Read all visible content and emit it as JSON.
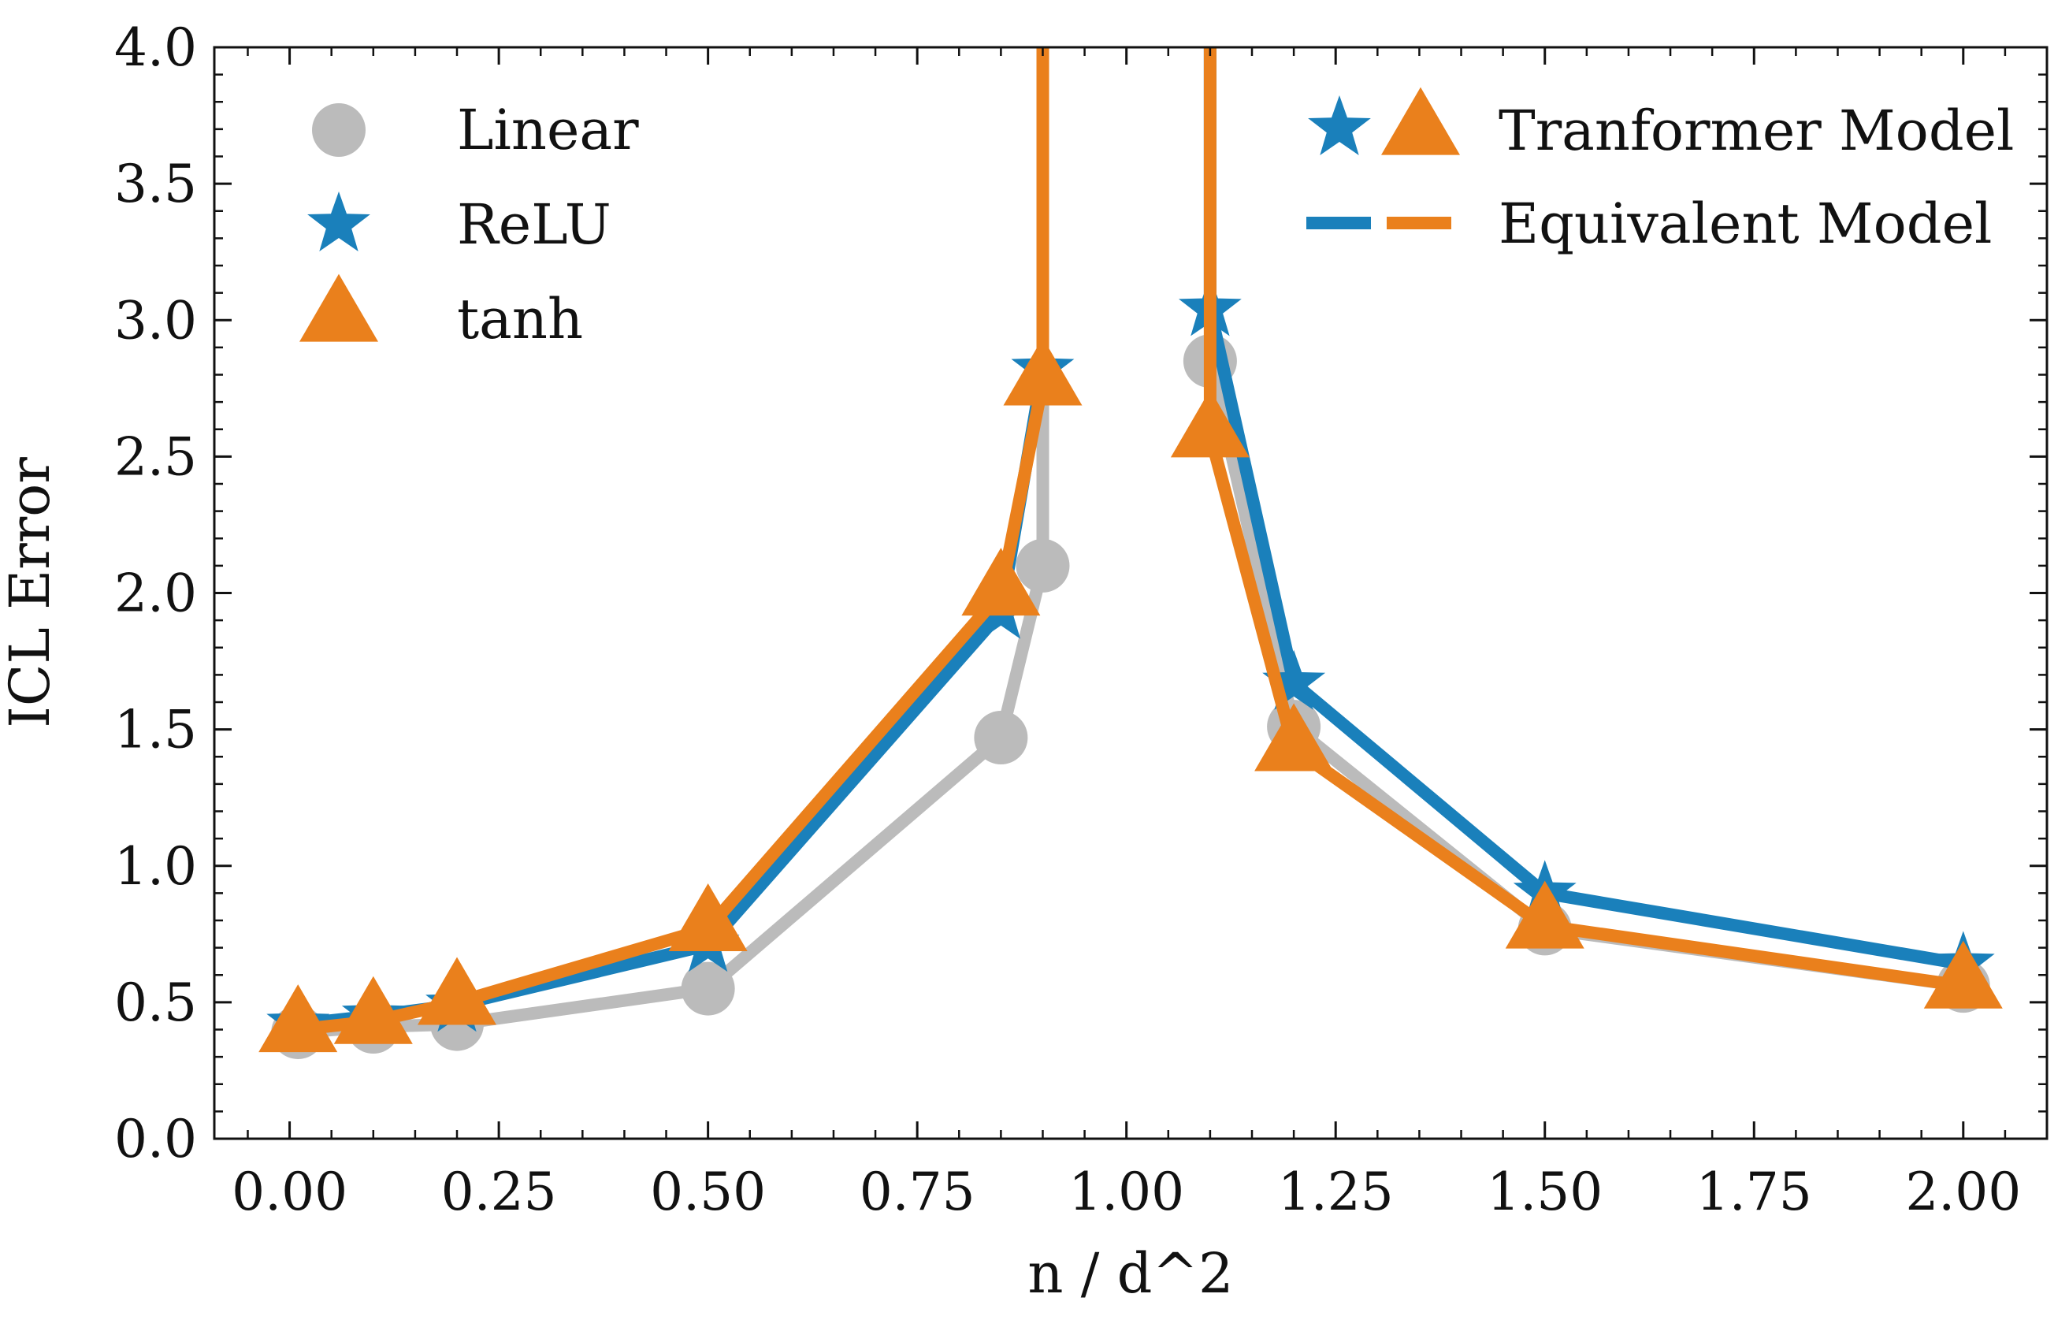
{
  "chart_data": {
    "type": "line",
    "title": "",
    "xlabel": "n / d^2",
    "ylabel": "ICL Error",
    "xlim": [
      -0.09,
      2.1
    ],
    "ylim": [
      0.0,
      4.0
    ],
    "x_ticks": [
      0.0,
      0.25,
      0.5,
      0.75,
      1.0,
      1.25,
      1.5,
      1.75,
      2.0
    ],
    "x_tick_labels": [
      "0.00",
      "0.25",
      "0.50",
      "0.75",
      "1.00",
      "1.25",
      "1.50",
      "1.75",
      "2.00"
    ],
    "y_ticks": [
      0.0,
      0.5,
      1.0,
      1.5,
      2.0,
      2.5,
      3.0,
      3.5,
      4.0
    ],
    "y_tick_labels": [
      "0.0",
      "0.5",
      "1.0",
      "1.5",
      "2.0",
      "2.5",
      "3.0",
      "3.5",
      "4.0"
    ],
    "grid": false,
    "series": [
      {
        "name": "Linear",
        "color": "#bbbbbb",
        "marker": "circle",
        "left_branch": {
          "x": [
            0.01,
            0.1,
            0.2,
            0.5,
            0.85,
            0.9
          ],
          "model_points": [
            0.39,
            0.41,
            0.42,
            0.55,
            1.47,
            2.1
          ],
          "equivalent_line": [
            0.39,
            0.41,
            0.42,
            0.55,
            1.47,
            2.1,
            4.2
          ]
        },
        "right_branch": {
          "x": [
            1.1,
            1.2,
            1.5,
            2.0
          ],
          "model_points": [
            2.85,
            1.51,
            0.77,
            0.56
          ],
          "equivalent_line": [
            4.2,
            2.85,
            1.51,
            0.77,
            0.56
          ]
        }
      },
      {
        "name": "ReLU",
        "color": "#1a80bb",
        "marker": "star",
        "left_branch": {
          "x": [
            0.01,
            0.1,
            0.2,
            0.5,
            0.85,
            0.9
          ],
          "model_points": [
            0.42,
            0.45,
            0.49,
            0.71,
            1.93,
            2.82
          ],
          "equivalent_line": [
            0.42,
            0.45,
            0.49,
            0.71,
            1.93,
            2.82,
            4.2
          ]
        },
        "right_branch": {
          "x": [
            1.1,
            1.2,
            1.5,
            2.0
          ],
          "model_points": [
            3.04,
            1.67,
            0.9,
            0.64
          ],
          "equivalent_line": [
            4.2,
            3.04,
            1.67,
            0.9,
            0.64
          ]
        }
      },
      {
        "name": "tanh",
        "color": "#ea801c",
        "marker": "triangle",
        "left_branch": {
          "x": [
            0.01,
            0.1,
            0.2,
            0.5,
            0.85,
            0.9
          ],
          "model_points": [
            0.4,
            0.43,
            0.5,
            0.77,
            2.0,
            2.77
          ],
          "equivalent_line": [
            0.4,
            0.43,
            0.5,
            0.77,
            2.0,
            2.77,
            4.2
          ]
        },
        "right_branch": {
          "x": [
            1.1,
            1.2,
            1.5,
            2.0
          ],
          "model_points": [
            2.58,
            1.43,
            0.78,
            0.56
          ],
          "equivalent_line": [
            4.2,
            2.58,
            1.43,
            0.78,
            0.56
          ]
        }
      }
    ],
    "legends": {
      "left": {
        "position": "top-left",
        "entries": [
          {
            "label": "Linear",
            "series": "Linear"
          },
          {
            "label": "ReLU",
            "series": "ReLU"
          },
          {
            "label": "tanh",
            "series": "tanh"
          }
        ]
      },
      "right": {
        "position": "top-right",
        "entries": [
          {
            "label": "Tranformer Model",
            "style": "markers"
          },
          {
            "label": "Equivalent Model",
            "style": "lines"
          }
        ]
      }
    }
  }
}
